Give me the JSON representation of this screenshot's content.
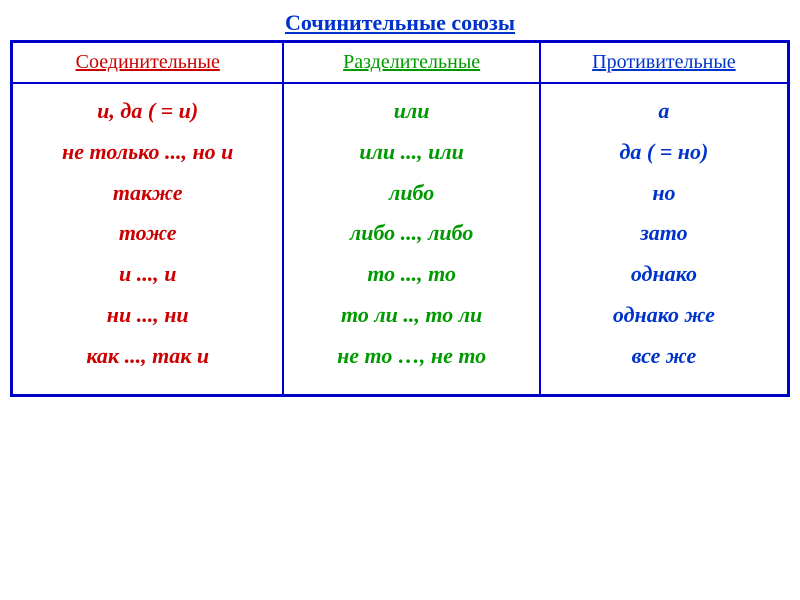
{
  "title": {
    "text": "Сочинительные союзы",
    "color": "#0033cc",
    "fontsize": 22
  },
  "columns": {
    "width_pct": [
      35,
      33,
      32
    ]
  },
  "headers": {
    "col1": {
      "text": "Соединительные",
      "color": "#cc0000",
      "fontsize": 20
    },
    "col2": {
      "text": "Разделительные",
      "color": "#009900",
      "fontsize": 20
    },
    "col3": {
      "text": "Противительные",
      "color": "#0033cc",
      "fontsize": 20
    }
  },
  "content": {
    "col1": {
      "color": "#cc0000",
      "fontsize": 22,
      "items": [
        "и, да ( = и)",
        "не только ..., но и",
        "также",
        "тоже",
        "и ..., и",
        "ни ..., ни",
        "как ..., так и"
      ]
    },
    "col2": {
      "color": "#009900",
      "fontsize": 22,
      "items": [
        "или",
        "или ..., или",
        "либо",
        "либо ..., либо",
        "то ..., то",
        "то ли .., то ли",
        "не то …, не то"
      ]
    },
    "col3": {
      "color": "#0033cc",
      "fontsize": 22,
      "items": [
        "а",
        "да ( = но)",
        "но",
        "зато",
        "однако",
        "однако же",
        "все же"
      ]
    }
  },
  "styling": {
    "border_color": "#0000cc",
    "background_color": "#ffffff",
    "border_width": 3,
    "inner_border_width": 2
  }
}
